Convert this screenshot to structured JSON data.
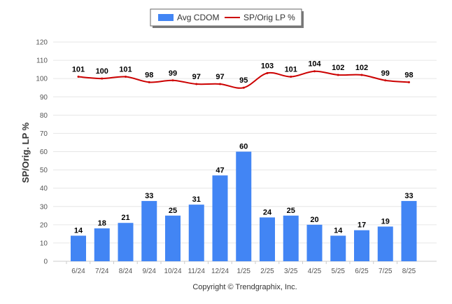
{
  "chart_data": {
    "type": "bar",
    "categories": [
      "6/24",
      "7/24",
      "8/24",
      "9/24",
      "10/24",
      "11/24",
      "12/24",
      "1/25",
      "2/25",
      "3/25",
      "4/25",
      "5/25",
      "6/25",
      "7/25",
      "8/25"
    ],
    "series": [
      {
        "name": "Avg CDOM",
        "type": "bar",
        "color": "#4285f4",
        "values": [
          14,
          18,
          21,
          33,
          25,
          31,
          47,
          60,
          24,
          25,
          20,
          14,
          17,
          19,
          33
        ]
      },
      {
        "name": "SP/Orig LP %",
        "type": "line",
        "color": "#cc0000",
        "values": [
          101,
          100,
          101,
          98,
          99,
          97,
          97,
          95,
          103,
          101,
          104,
          102,
          102,
          99,
          98
        ]
      }
    ],
    "ylabel": "SP/Orig. LP %",
    "xlabel": "",
    "ylim": [
      0,
      120
    ],
    "yticks": [
      0,
      10,
      20,
      30,
      40,
      50,
      60,
      70,
      80,
      90,
      100,
      110,
      120
    ],
    "grid": true,
    "legend_position": "top-center"
  },
  "legend": {
    "bar_label": "Avg CDOM",
    "line_label": "SP/Orig LP %"
  },
  "copyright": "Copyright © Trendgraphix, Inc."
}
